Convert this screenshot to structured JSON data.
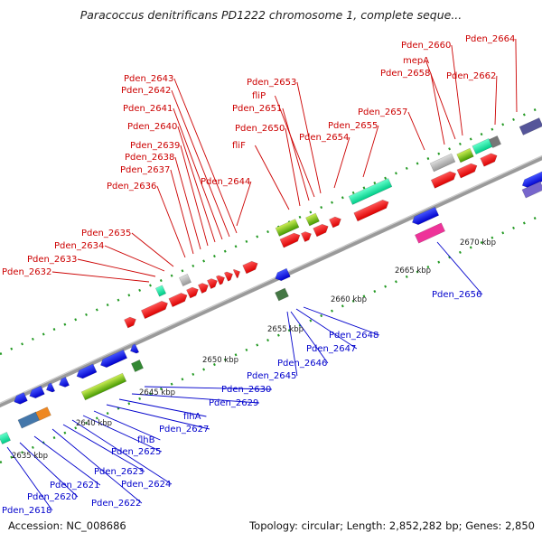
{
  "title": "Paracoccus denitrificans PD1222 chromosome 1, complete seque...",
  "footer": {
    "accession": "Accession: NC_008686",
    "summary": "Topology: circular; Length: 2,852,282 bp; Genes: 2,850"
  },
  "colors": {
    "forward": "#ee0000",
    "reverse": "#0000dd",
    "backbone": "#9a9a9a",
    "tick": "#228822",
    "label_forward": "#cc0000",
    "label_reverse": "#0000cc"
  },
  "scale_labels": [
    "2635 kbp",
    "2640 kbp",
    "2645 kbp",
    "2650 kbp",
    "2655 kbp",
    "2660 kbp",
    "2665 kbp",
    "2670 kbp"
  ],
  "forward_labels": [
    "Pden_2632",
    "Pden_2633",
    "Pden_2634",
    "Pden_2635",
    "Pden_2636",
    "Pden_2637",
    "Pden_2638",
    "Pden_2639",
    "Pden_2640",
    "Pden_2641",
    "Pden_2642",
    "Pden_2643",
    "Pden_2644",
    "fliF",
    "Pden_2650",
    "Pden_2651",
    "fliP",
    "Pden_2653",
    "Pden_2654",
    "Pden_2655",
    "Pden_2657",
    "Pden_2658",
    "mepA",
    "Pden_2660",
    "Pden_2662",
    "Pden_2664"
  ],
  "reverse_labels": [
    "Pden_2618",
    "Pden_2620",
    "Pden_2621",
    "Pden_2622",
    "Pden_2623",
    "Pden_2624",
    "Pden_2625",
    "flhB",
    "Pden_2627",
    "flhA",
    "Pden_2629",
    "Pden_2630",
    "Pden_2645",
    "Pden_2646",
    "Pden_2647",
    "Pden_2648",
    "Pden_2656"
  ]
}
